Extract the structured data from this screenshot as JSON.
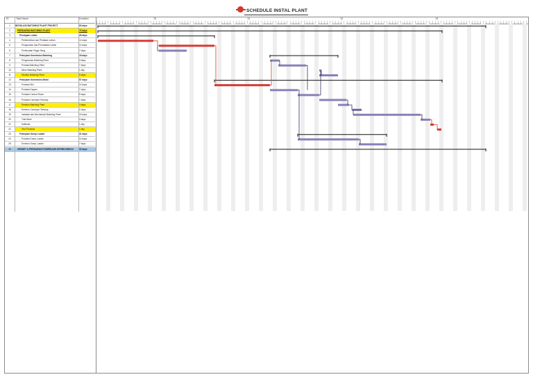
{
  "header": {
    "title": "SCHEDULE INSTAL PLANT",
    "col_id": "ID",
    "col_name": "Task Name",
    "col_duration": "Duration"
  },
  "timescale": {
    "majors": [
      "'23",
      "'23",
      "'23",
      "'23"
    ]
  },
  "tasks": [
    {
      "id": "1",
      "name": "INSTALASI BATCHING PLANT PROJECT",
      "duration": "93 days",
      "style": "bold"
    },
    {
      "id": "2",
      "name": "PERSIAPAN BATCHING PLANT",
      "duration": "75 days",
      "style": "bold hl ul"
    },
    {
      "id": "3",
      "name": "Persiapan Lahan",
      "duration": "25 days",
      "style": "bold ital"
    },
    {
      "id": "4",
      "name": "Pembersihan dan Perataan Lahan",
      "duration": "14 days",
      "style": ""
    },
    {
      "id": "5",
      "name": "Pengurukan dan Pemadatan Lahan",
      "duration": "14 days",
      "style": ""
    },
    {
      "id": "6",
      "name": "Pembuatan Pagar Seng",
      "duration": "7 days",
      "style": ""
    },
    {
      "id": "7",
      "name": "Pekerjaan Konstruksi Batching",
      "duration": "18 days",
      "style": "bold ital"
    },
    {
      "id": "8",
      "name": "Pengukuran Batching Plant",
      "duration": "3 days",
      "style": ""
    },
    {
      "id": "9",
      "name": "Pondasi Batching Plant",
      "duration": "7 days",
      "style": ""
    },
    {
      "id": "10",
      "name": "Mixer Batching Plant",
      "duration": "1 day",
      "style": ""
    },
    {
      "id": "11",
      "name": "Struktur Batching Plant",
      "duration": "5 days",
      "style": "hl"
    },
    {
      "id": "12",
      "name": "Pekerjaan Konstruksi Mobil",
      "duration": "57 days",
      "style": "bold ital"
    },
    {
      "id": "13",
      "name": "Pondasi Silo",
      "duration": "14 days",
      "style": ""
    },
    {
      "id": "14",
      "name": "Pondasi Hopper",
      "duration": "7 days",
      "style": ""
    },
    {
      "id": "15",
      "name": "Pondasi Control Room",
      "duration": "5 days",
      "style": ""
    },
    {
      "id": "16",
      "name": "Pondasi Conveyor Tertutup",
      "duration": "7 days",
      "style": ""
    },
    {
      "id": "17",
      "name": "Erection Batching Plant",
      "duration": "3 days",
      "style": "hl"
    },
    {
      "id": "18",
      "name": "Erection Conveyor Tertutup",
      "duration": "2 days",
      "style": ""
    },
    {
      "id": "19",
      "name": "Instalasi dan Mechanical Batching Plant",
      "duration": "16 days",
      "style": ""
    },
    {
      "id": "20",
      "name": "Trial Mixer",
      "duration": "3 days",
      "style": ""
    },
    {
      "id": "21",
      "name": "Kalibrasi",
      "duration": "1 day",
      "style": ""
    },
    {
      "id": "22",
      "name": "Test Produksi",
      "duration": "1 day",
      "style": "hl"
    },
    {
      "id": "23",
      "name": "Pekerjaan Dump Loader",
      "duration": "21 days",
      "style": "bold ital"
    },
    {
      "id": "24",
      "name": "Pondasi Dump Loader",
      "duration": "14 days",
      "style": ""
    },
    {
      "id": "25",
      "name": "Erection Dump Loader",
      "duration": "7 days",
      "style": ""
    },
    {
      "id": "26",
      "name": "GENSET & PERSIAPAN POWERLINE INTERKONEKSI",
      "duration": "52 days",
      "style": "bold hlb"
    }
  ],
  "colors": {
    "critical": "#d43a34",
    "normal": "#8b7fb8",
    "summary": "#111111"
  }
}
